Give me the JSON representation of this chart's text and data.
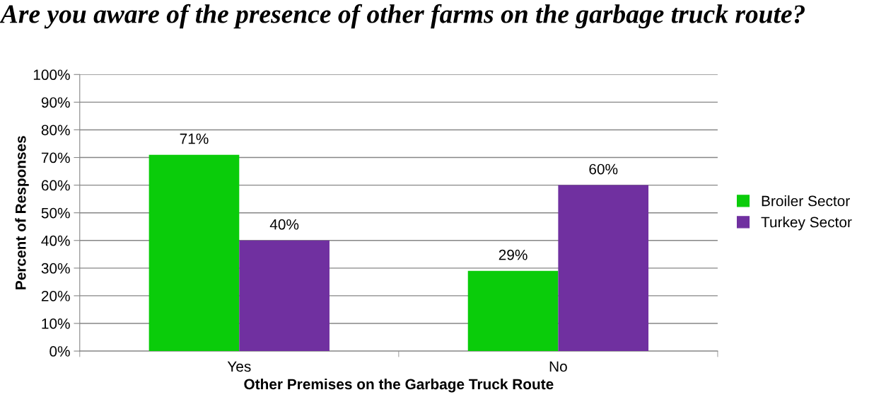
{
  "chart_data": {
    "type": "bar",
    "title": "Are you aware of the presence of other farms on the garbage truck route?",
    "xlabel": "Other Premises on the Garbage Truck Route",
    "ylabel": "Percent of Responses",
    "categories": [
      "Yes",
      "No"
    ],
    "series": [
      {
        "name": "Broiler Sector",
        "color": "#0acc0a",
        "values": [
          71,
          29
        ],
        "value_labels": [
          "71%",
          "29%"
        ]
      },
      {
        "name": "Turkey Sector",
        "color": "#7030a0",
        "values": [
          40,
          60
        ],
        "value_labels": [
          "40%",
          "60%"
        ]
      }
    ],
    "ylim": [
      0,
      100
    ],
    "yticks": [
      {
        "value": 0,
        "label": "0%"
      },
      {
        "value": 10,
        "label": "10%"
      },
      {
        "value": 20,
        "label": "20%"
      },
      {
        "value": 30,
        "label": "30%"
      },
      {
        "value": 40,
        "label": "40%"
      },
      {
        "value": 50,
        "label": "50%"
      },
      {
        "value": 60,
        "label": "60%"
      },
      {
        "value": 70,
        "label": "70%"
      },
      {
        "value": 80,
        "label": "80%"
      },
      {
        "value": 90,
        "label": "90%"
      },
      {
        "value": 100,
        "label": "100%"
      }
    ],
    "grid": "y",
    "legend": "right"
  }
}
